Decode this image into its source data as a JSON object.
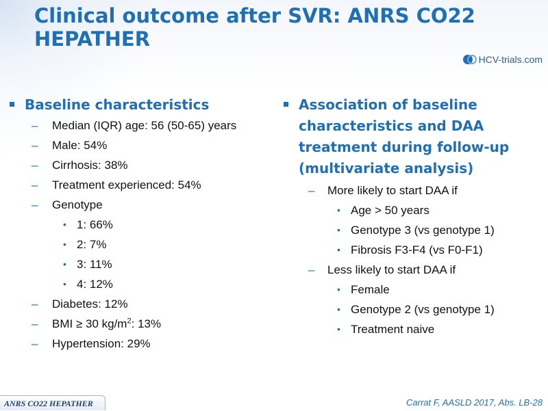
{
  "slide": {
    "title": "Clinical outcome after SVR: ANRS CO22 HEPATHER",
    "logo_text": "HCV-trials.com",
    "footer_tag": "ANRS CO22 HEPATHER",
    "citation": "Carrat F, AASLD 2017, Abs. LB-28"
  },
  "left": {
    "heading": "Baseline characteristics",
    "items": [
      {
        "text": "Median (IQR) age: 56 (50-65) years"
      },
      {
        "text": "Male: 54%"
      },
      {
        "text": "Cirrhosis: 38%"
      },
      {
        "text": "Treatment experienced: 54%"
      },
      {
        "text": "Genotype",
        "sub": [
          "1: 66%",
          "2: 7%",
          "3: 11%",
          "4: 12%"
        ]
      },
      {
        "text": "Diabetes: 12%"
      },
      {
        "text_pre": "BMI ≥ 30 kg/m",
        "sup": "2",
        "text_post": ": 13%"
      },
      {
        "text": "Hypertension: 29%"
      }
    ]
  },
  "right": {
    "heading_lines": [
      "Association of baseline",
      "characteristics and DAA",
      "treatment during follow-up",
      "(multivariate analysis)"
    ],
    "groups": [
      {
        "label": "More likely to start DAA if",
        "sub": [
          "Age > 50 years",
          "Genotype 3 (vs genotype 1)",
          "Fibrosis F3-F4 (vs F0-F1)"
        ]
      },
      {
        "label": "Less likely to start DAA if",
        "sub": [
          "Female",
          "Genotype 2 (vs genotype 1)",
          "Treatment naive"
        ]
      }
    ]
  },
  "colors": {
    "accent": "#1f6fb5",
    "text": "#111111"
  }
}
